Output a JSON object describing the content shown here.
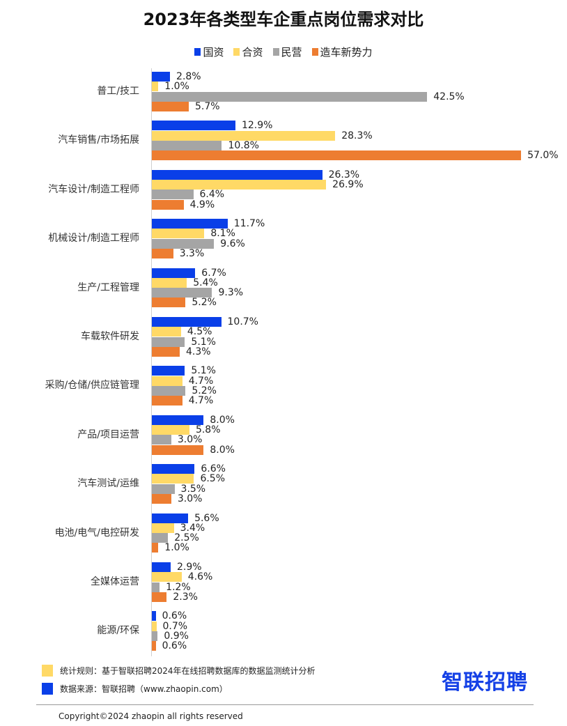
{
  "header": {
    "title": "2023年各类型车企重点岗位需求对比"
  },
  "legend": [
    {
      "label": "国资",
      "color": "#0A3FE8"
    },
    {
      "label": "合资",
      "color": "#FFD966"
    },
    {
      "label": "民营",
      "color": "#A5A5A5"
    },
    {
      "label": "造车新势力",
      "color": "#ED7D31"
    }
  ],
  "chart_data": {
    "type": "bar",
    "orientation": "horizontal",
    "title": "2023年各类型车企重点岗位需求对比",
    "xlabel": "",
    "ylabel": "",
    "xlim": [
      0,
      60
    ],
    "grid": false,
    "legend_position": "top",
    "value_suffix": "%",
    "categories": [
      "普工/技工",
      "汽车销售/市场拓展",
      "汽车设计/制造工程师",
      "机械设计/制造工程师",
      "生产/工程管理",
      "车载软件研发",
      "采购/仓储/供应链管理",
      "产品/项目运营",
      "汽车测试/运维",
      "电池/电气/电控研发",
      "全媒体运营",
      "能源/环保"
    ],
    "series": [
      {
        "name": "国资",
        "color": "#0A3FE8",
        "values": [
          2.8,
          12.9,
          26.3,
          11.7,
          6.7,
          10.7,
          5.1,
          8.0,
          6.6,
          5.6,
          2.9,
          0.6
        ]
      },
      {
        "name": "合资",
        "color": "#FFD966",
        "values": [
          1.0,
          28.3,
          26.9,
          8.1,
          5.4,
          4.5,
          4.7,
          5.8,
          6.5,
          3.4,
          4.6,
          0.7
        ]
      },
      {
        "name": "民营",
        "color": "#A5A5A5",
        "values": [
          42.5,
          10.8,
          6.4,
          9.6,
          9.3,
          5.1,
          5.2,
          3.0,
          3.5,
          2.5,
          1.2,
          0.9
        ]
      },
      {
        "name": "造车新势力",
        "color": "#ED7D31",
        "values": [
          5.7,
          57.0,
          4.9,
          3.3,
          5.2,
          4.3,
          4.7,
          8.0,
          3.0,
          1.0,
          2.3,
          0.6
        ]
      }
    ]
  },
  "footer": {
    "notes": [
      {
        "text": "统计规则：基于智联招聘2024年在线招聘数据库的数据监测统计分析",
        "color": "#FFD966"
      },
      {
        "text": "数据来源：智联招聘（www.zhaopin.com）",
        "color": "#0A3FE8"
      }
    ],
    "logo": "智联招聘",
    "copyright": "Copyright©2024 zhaopin all rights reserved"
  }
}
